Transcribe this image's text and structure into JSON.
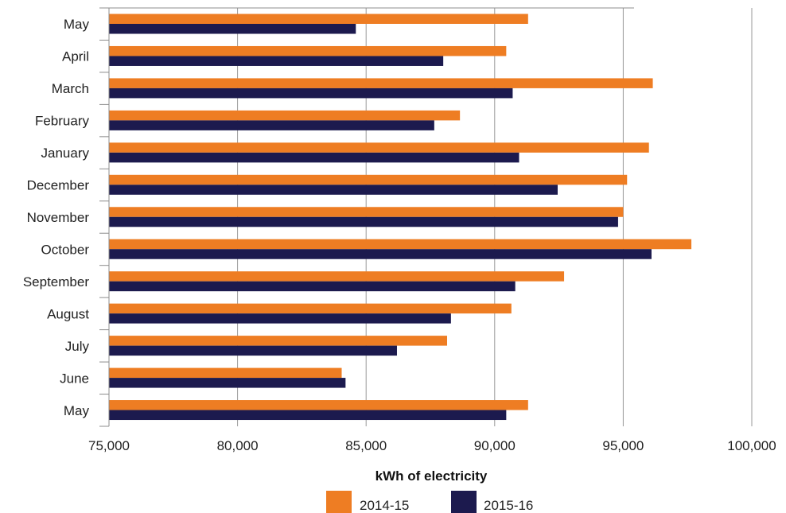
{
  "chart_data": {
    "type": "bar",
    "orientation": "horizontal",
    "categories": [
      "May",
      "April",
      "March",
      "February",
      "January",
      "December",
      "November",
      "October",
      "September",
      "August",
      "July",
      "June",
      "May"
    ],
    "series": [
      {
        "name": "2014-15",
        "color": "#ee7d23",
        "values": [
          91300,
          90450,
          96150,
          88650,
          96000,
          95150,
          95000,
          97650,
          92700,
          90650,
          88150,
          84050,
          91300
        ]
      },
      {
        "name": "2015-16",
        "color": "#1c1a4e",
        "values": [
          84600,
          88000,
          90700,
          87650,
          90950,
          92450,
          94800,
          96100,
          90800,
          88300,
          86200,
          84200,
          90450
        ]
      }
    ],
    "xlim": [
      75000,
      100000
    ],
    "xticks": [
      75000,
      80000,
      85000,
      90000,
      95000,
      100000
    ],
    "xtick_labels": [
      "75,000",
      "80,000",
      "85,000",
      "90,000",
      "95,000",
      "100,000"
    ],
    "xlabel": "kWh of electricity",
    "ylabel": "",
    "title": "",
    "grid": "vertical",
    "legend_position": "bottom"
  }
}
